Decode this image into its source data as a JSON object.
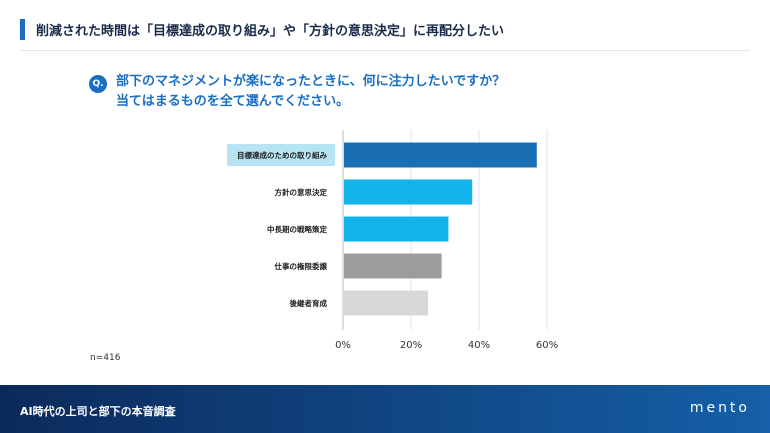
{
  "header": {
    "title": "削減された時間は「目標達成の取り組み」や「方針の意思決定」に再配分したい"
  },
  "question": {
    "badge": "Q.",
    "line1": "部下のマネジメントが楽になったときに、何に注力したいですか？",
    "line2": "当てはまるものを全て選んでください。"
  },
  "chart_data": {
    "type": "bar",
    "orientation": "horizontal",
    "categories": [
      "目標達成のための取り組み",
      "方針の意思決定",
      "中長期の戦略策定",
      "仕事の権限委譲",
      "後継者育成"
    ],
    "values": [
      57,
      38,
      31,
      29,
      25
    ],
    "colors": [
      "#1a6fb3",
      "#10b4ea",
      "#10b4ea",
      "#9c9c9c",
      "#d8d8d8"
    ],
    "highlight_category_bg": "#b7e4f5",
    "xlim": [
      0,
      60
    ],
    "xticks": [
      0,
      20,
      40,
      60
    ],
    "xtick_labels": [
      "0%",
      "20%",
      "40%",
      "60%"
    ],
    "grid": true
  },
  "sample_size": "n=416",
  "footer": {
    "title": "AI時代の上司と部下の本音調査",
    "logo": "mento"
  }
}
